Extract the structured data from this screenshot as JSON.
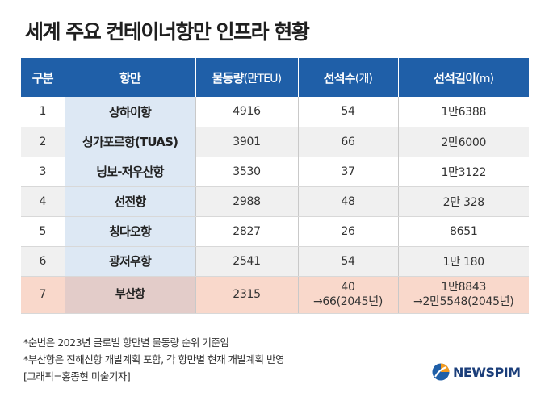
{
  "title": "세계 주요 컨테이너항만 인프라 현황",
  "headers": [
    {
      "main": "구분",
      "unit": ""
    },
    {
      "main": "항만",
      "unit": ""
    },
    {
      "main": "물동량",
      "unit": "(만TEU)"
    },
    {
      "main": "선석수",
      "unit": "(개)"
    },
    {
      "main": "선석길이",
      "unit": "(m)"
    }
  ],
  "rows": [
    {
      "rank": "1",
      "port": "상하이항",
      "volume": "4916",
      "berths": "54",
      "length": "1만6388"
    },
    {
      "rank": "2",
      "port": "싱가포르항(TUAS)",
      "volume": "3901",
      "berths": "66",
      "length": "2만6000"
    },
    {
      "rank": "3",
      "port": "닝보-저우산항",
      "volume": "3530",
      "berths": "37",
      "length": "1만3122"
    },
    {
      "rank": "4",
      "port": "선전항",
      "volume": "2988",
      "berths": "48",
      "length": "2만 328"
    },
    {
      "rank": "5",
      "port": "칭다오항",
      "volume": "2827",
      "berths": "26",
      "length": "8651"
    },
    {
      "rank": "6",
      "port": "광저우항",
      "volume": "2541",
      "berths": "54",
      "length": "1만 180"
    },
    {
      "rank": "7",
      "port": "부산항",
      "volume": "2315",
      "berths": "40",
      "berths_future": "→66(2045년)",
      "length": "1만8843",
      "length_future": "→2만5548(2045년)"
    }
  ],
  "notes": [
    "*순번은 2023년 글로벌 항만별 물동량 순위 기준임",
    "*부산항은 진해신항 개발계획 포함, 각 항만별 현재 개발계획 반영",
    "[그래픽=홍종현 미술기자]"
  ],
  "logo": {
    "text": "NEWSPIM",
    "icon": "newspim-logo-icon"
  },
  "colors": {
    "header_bg": "#1f5fa8",
    "port_col_bg": "#dde8f4",
    "busan_row_bg": "#f9d8cb",
    "stripe_bg": "#f0f0f0"
  }
}
